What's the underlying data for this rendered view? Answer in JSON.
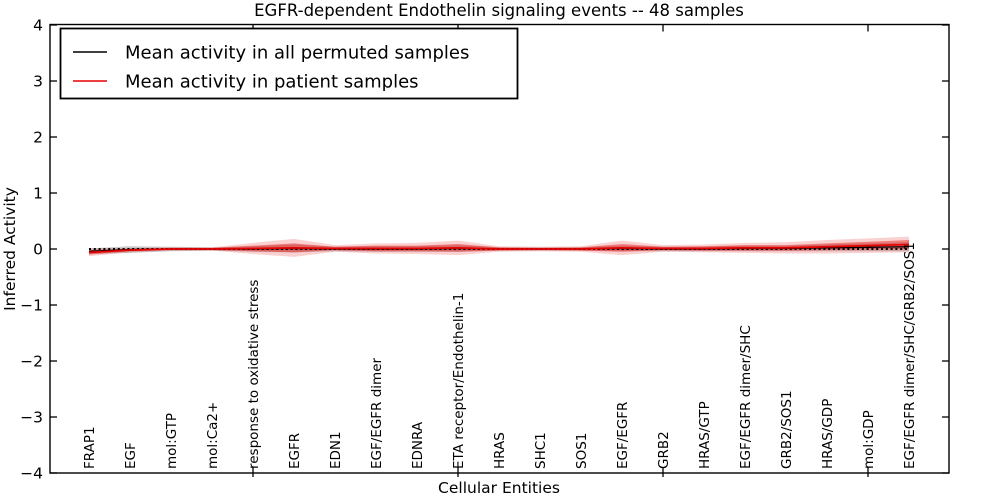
{
  "chart_data": {
    "type": "line",
    "title": "EGFR-dependent Endothelin signaling events -- 48 samples",
    "xlabel": "Cellular Entities",
    "ylabel": "Inferred Activity",
    "ylim": [
      -4,
      4
    ],
    "yticks": [
      -4,
      -3,
      -2,
      -1,
      0,
      1,
      2,
      3,
      4
    ],
    "grid": false,
    "legend_position": "upper left",
    "categories": [
      "FRAP1",
      "EGF",
      "mol:GTP",
      "mol:Ca2+",
      "response to oxidative stress",
      "EGFR",
      "EDN1",
      "EGF/EGFR dimer",
      "EDNRA",
      "ETA receptor/Endothelin-1",
      "HRAS",
      "SHC1",
      "SOS1",
      "EGF/EGFR",
      "GRB2",
      "HRAS/GTP",
      "EGF/EGFR dimer/SHC",
      "GRB2/SOS1",
      "HRAS/GDP",
      "mol:GDP",
      "EGF/EGFR dimer/SHC/GRB2/SOS1"
    ],
    "major_tick_indices": [
      4,
      9,
      14,
      19
    ],
    "zero_line": {
      "value": 0,
      "style": "dotted",
      "color": "#000000"
    },
    "series": [
      {
        "name": "Mean activity in all permuted samples",
        "color": "#000000",
        "band_color": "rgba(110,110,110,0.35)",
        "values": [
          -0.04,
          -0.01,
          0.0,
          0.0,
          0.0,
          0.01,
          0.0,
          0.0,
          0.0,
          0.01,
          0.0,
          0.0,
          0.0,
          0.01,
          0.0,
          0.0,
          0.01,
          0.01,
          0.02,
          0.03,
          0.04
        ],
        "band_halfwidth": [
          0.05,
          0.06,
          0.04,
          0.03,
          0.05,
          0.07,
          0.04,
          0.05,
          0.05,
          0.06,
          0.03,
          0.03,
          0.03,
          0.05,
          0.04,
          0.04,
          0.05,
          0.05,
          0.06,
          0.07,
          0.08
        ]
      },
      {
        "name": "Mean activity in patient samples",
        "color": "#e60000",
        "band_inner_color": "rgba(230,0,0,0.40)",
        "band_outer_color": "rgba(230,0,0,0.18)",
        "values": [
          -0.06,
          -0.02,
          0.0,
          0.0,
          0.01,
          0.02,
          0.01,
          0.01,
          0.01,
          0.02,
          0.0,
          0.0,
          0.0,
          0.02,
          0.01,
          0.01,
          0.02,
          0.02,
          0.04,
          0.06,
          0.08
        ],
        "band_inner_halfwidth": [
          0.04,
          0.02,
          0.02,
          0.02,
          0.05,
          0.08,
          0.03,
          0.05,
          0.05,
          0.07,
          0.03,
          0.02,
          0.03,
          0.07,
          0.03,
          0.04,
          0.05,
          0.05,
          0.06,
          0.07,
          0.08
        ],
        "band_outer_halfwidth": [
          0.07,
          0.04,
          0.03,
          0.03,
          0.1,
          0.16,
          0.06,
          0.09,
          0.1,
          0.13,
          0.05,
          0.04,
          0.05,
          0.13,
          0.06,
          0.07,
          0.09,
          0.1,
          0.12,
          0.13,
          0.14
        ]
      }
    ],
    "legend": {
      "entries": [
        {
          "label": "Mean activity in all permuted samples",
          "color": "#000000"
        },
        {
          "label": "Mean activity in patient samples",
          "color": "#e60000"
        }
      ]
    }
  }
}
